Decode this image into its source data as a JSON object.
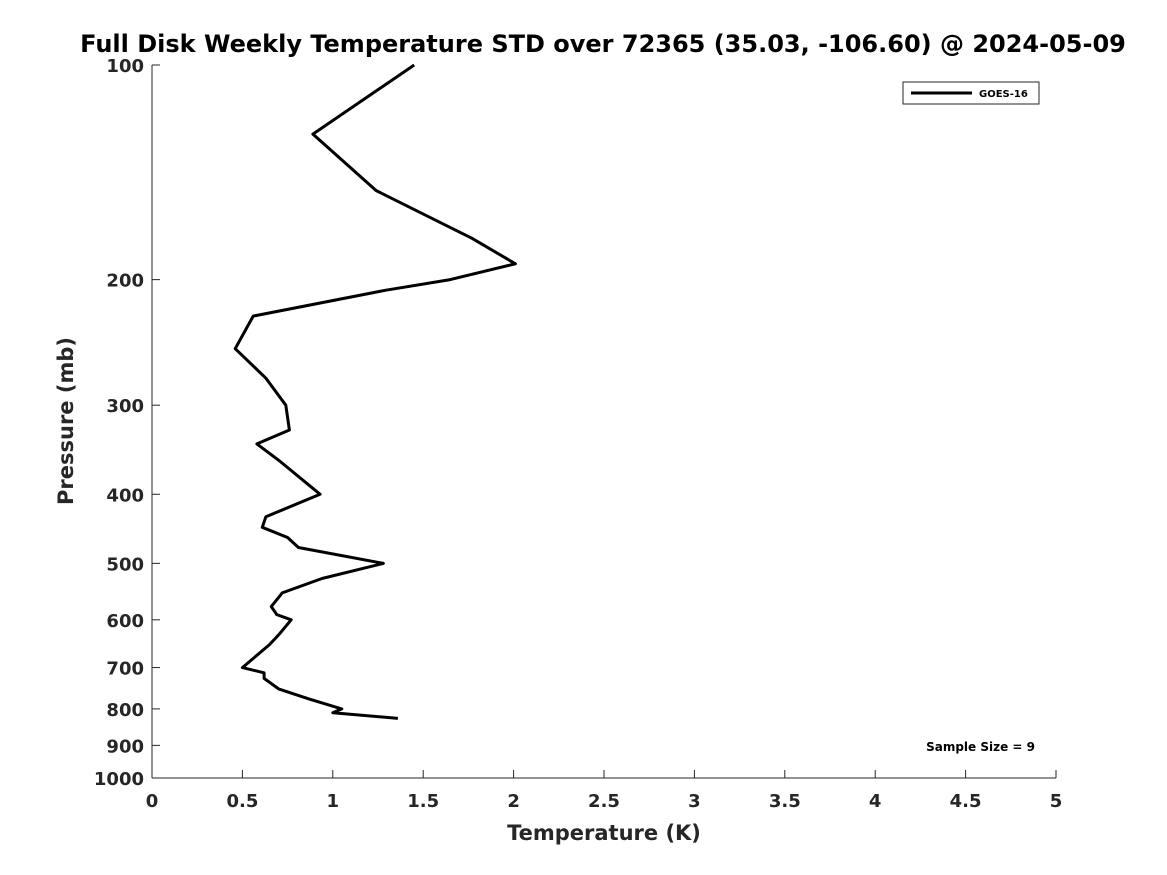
{
  "chart_data": {
    "type": "line",
    "title": "Full Disk Weekly Temperature STD over 72365 (35.03, -106.60) @ 2024-05-09",
    "xlabel": "Temperature (K)",
    "ylabel": "Pressure (mb)",
    "xlim": [
      0,
      5
    ],
    "ylim": [
      100,
      1000
    ],
    "y_scale": "log",
    "y_reversed": true,
    "xticks": [
      0,
      0.5,
      1,
      1.5,
      2,
      2.5,
      3,
      3.5,
      4,
      4.5,
      5
    ],
    "xtick_labels": [
      "0",
      "0.5",
      "1",
      "1.5",
      "2",
      "2.5",
      "3",
      "3.5",
      "4",
      "4.5",
      "5"
    ],
    "yticks": [
      100,
      200,
      300,
      400,
      500,
      600,
      700,
      800,
      900,
      1000
    ],
    "ytick_labels": [
      "100",
      "200",
      "300",
      "400",
      "500",
      "600",
      "700",
      "800",
      "900",
      "1000"
    ],
    "grid": false,
    "legend_position": "top-right",
    "annotation": "Sample Size = 9",
    "series": [
      {
        "name": "GOES-16",
        "color": "#000000",
        "points": [
          [
            1.45,
            100
          ],
          [
            0.89,
            125
          ],
          [
            1.24,
            150
          ],
          [
            1.77,
            175
          ],
          [
            2.01,
            190
          ],
          [
            1.65,
            200
          ],
          [
            1.29,
            207
          ],
          [
            0.56,
            225
          ],
          [
            0.46,
            250
          ],
          [
            0.63,
            275
          ],
          [
            0.74,
            300
          ],
          [
            0.76,
            325
          ],
          [
            0.58,
            340
          ],
          [
            0.71,
            360
          ],
          [
            0.93,
            400
          ],
          [
            0.63,
            430
          ],
          [
            0.61,
            445
          ],
          [
            0.75,
            460
          ],
          [
            0.81,
            475
          ],
          [
            1.28,
            500
          ],
          [
            0.94,
            525
          ],
          [
            0.72,
            550
          ],
          [
            0.66,
            575
          ],
          [
            0.69,
            590
          ],
          [
            0.77,
            600
          ],
          [
            0.7,
            630
          ],
          [
            0.65,
            650
          ],
          [
            0.5,
            700
          ],
          [
            0.62,
            712
          ],
          [
            0.62,
            725
          ],
          [
            0.7,
            750
          ],
          [
            0.87,
            775
          ],
          [
            1.05,
            800
          ],
          [
            1.0,
            810
          ],
          [
            1.36,
            825
          ]
        ]
      }
    ]
  }
}
